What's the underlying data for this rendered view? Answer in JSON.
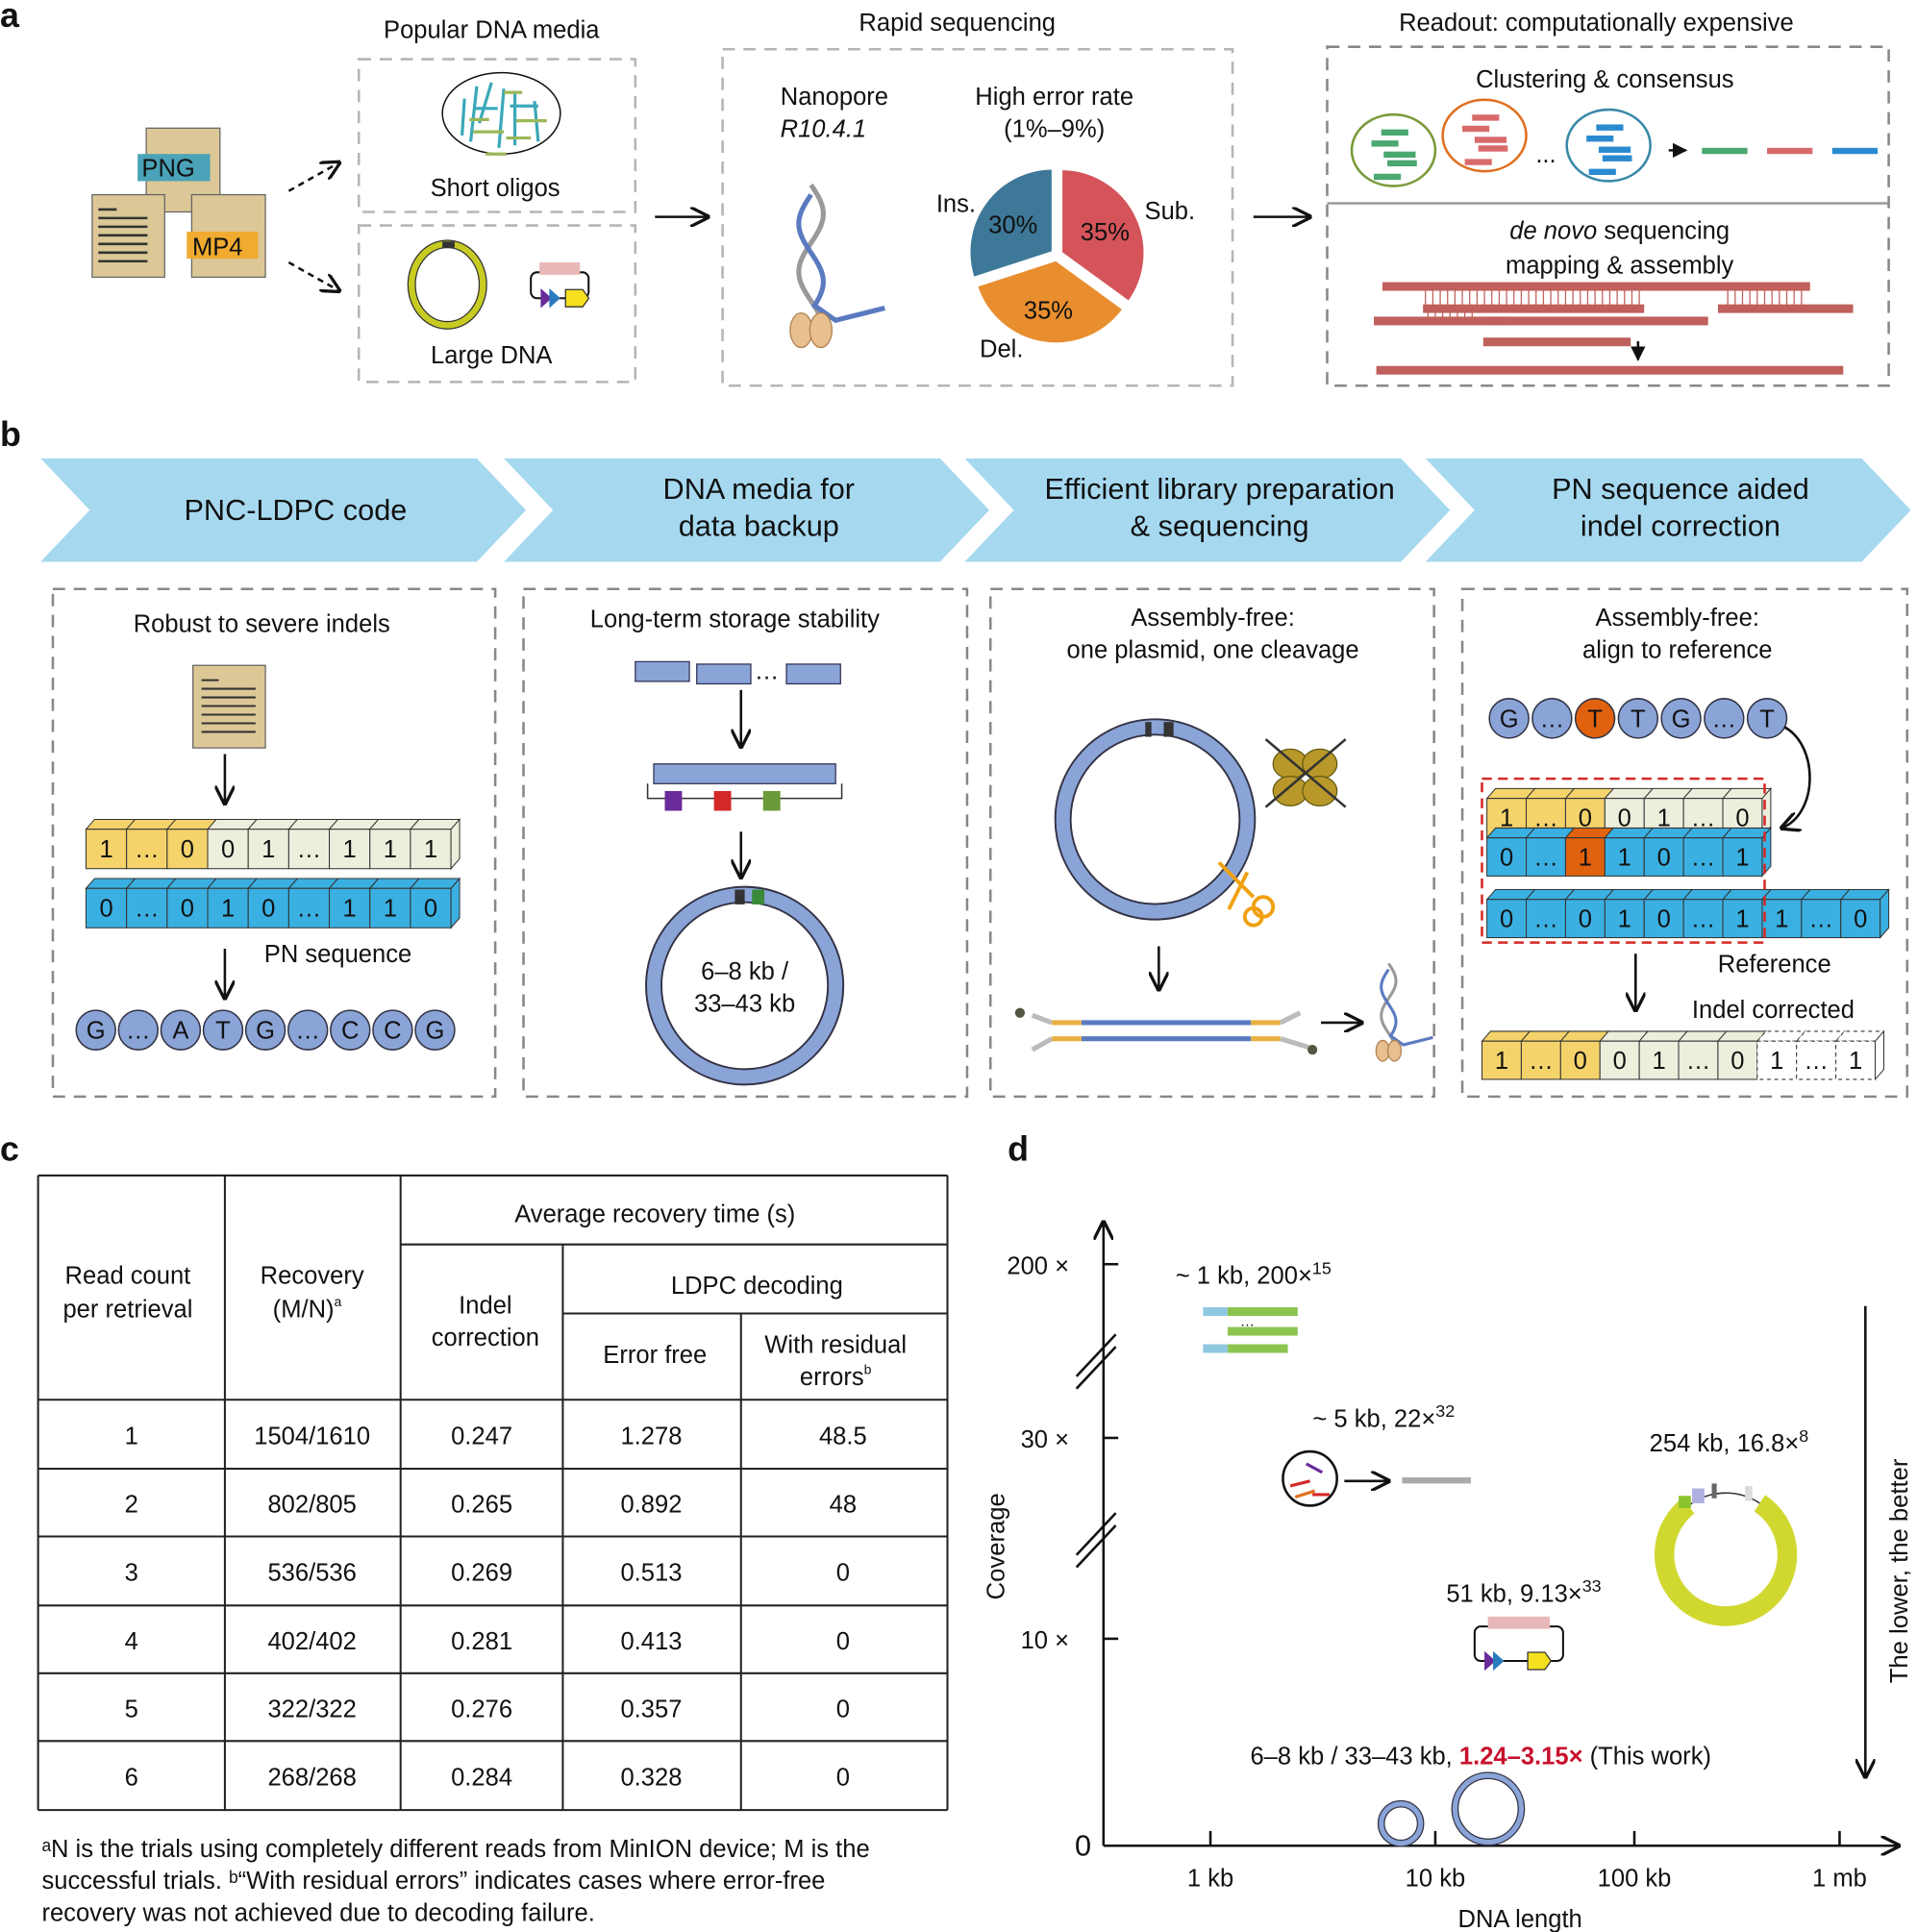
{
  "panel_labels": {
    "a": "a",
    "b": "b",
    "c": "c",
    "d": "d"
  },
  "a": {
    "png_label": "PNG",
    "mp4_label": "MP4",
    "media_title": "Popular DNA media",
    "short_oligos": "Short oligos",
    "large_dna": "Large DNA",
    "seq_title": "Rapid sequencing",
    "nanopore": "Nanopore",
    "model": "R10.4.1",
    "error_title": "High error rate",
    "error_range": "(1%–9%)",
    "pie": [
      {
        "label": "Sub.",
        "pct": "35%",
        "value": 35,
        "color": "#d4545a"
      },
      {
        "label": "Del.",
        "pct": "35%",
        "value": 35,
        "color": "#e88e2e"
      },
      {
        "label": "Ins.",
        "pct": "30%",
        "value": 30,
        "color": "#3e7898"
      }
    ],
    "readout_title": "Readout: computationally expensive",
    "clustering": "Clustering & consensus",
    "ellipsis": "...",
    "denovo_italic": "de novo",
    "denovo_rest": " sequencing",
    "mapping": "mapping & assembly"
  },
  "b": {
    "steps": [
      {
        "line1": "PNC-LDPC code",
        "line2": ""
      },
      {
        "line1": "DNA media for",
        "line2": "data backup"
      },
      {
        "line1": "Efficient library preparation",
        "line2": "& sequencing"
      },
      {
        "line1": "PN sequence aided",
        "line2": "indel correction"
      }
    ],
    "box1": {
      "title": "Robust to severe indels",
      "data_row": [
        "1",
        "…",
        "0",
        "0",
        "1",
        "…",
        "1",
        "1",
        "1"
      ],
      "pn_row": [
        "0",
        "…",
        "0",
        "1",
        "0",
        "…",
        "1",
        "1",
        "0"
      ],
      "pn_label": "PN sequence",
      "bases": [
        "G",
        "…",
        "A",
        "T",
        "G",
        "…",
        "C",
        "C",
        "G"
      ]
    },
    "box2": {
      "title": "Long-term storage stability",
      "ellipsis": "…",
      "size_line1": "6–8 kb /",
      "size_line2": "33–43 kb"
    },
    "box3": {
      "title_line1": "Assembly-free:",
      "title_line2": "one plasmid, one cleavage"
    },
    "box4": {
      "title_line1": "Assembly-free:",
      "title_line2": "align to reference",
      "bases": [
        "G",
        "…",
        "T",
        "T",
        "G",
        "…",
        "T"
      ],
      "row_data": [
        "1",
        "…",
        "0",
        "0",
        "1",
        "…",
        "0"
      ],
      "row_pn": [
        "0",
        "…",
        "1",
        "1",
        "0",
        "…",
        "1"
      ],
      "reference_row": [
        "0",
        "…",
        "0",
        "1",
        "0",
        "…",
        "1",
        "1",
        "…",
        "0"
      ],
      "reference_label": "Reference",
      "corrected_label": "Indel corrected",
      "corrected_row": [
        "1",
        "…",
        "0",
        "0",
        "1",
        "…",
        "0",
        "1",
        "…",
        "1"
      ]
    },
    "colors": {
      "chevron": "#a6d9f0",
      "yellow": "#f5d36b",
      "beige": "#eeeedd",
      "blue": "#3ab0e2",
      "orange": "#e0620e",
      "base": "#8aa4d8"
    }
  },
  "c": {
    "headers": {
      "read_count": [
        "Read count",
        "per retrieval"
      ],
      "recovery": [
        "Recovery",
        "(M/N)"
      ],
      "recovery_sup": "a",
      "avg_time": "Average recovery time (s)",
      "indel": [
        "Indel",
        "correction"
      ],
      "ldpc": "LDPC decoding",
      "error_free": "Error free",
      "residual": [
        "With residual",
        "errors"
      ],
      "residual_sup": "b"
    },
    "rows": [
      [
        "1",
        "1504/1610",
        "0.247",
        "1.278",
        "48.5"
      ],
      [
        "2",
        "802/805",
        "0.265",
        "0.892",
        "48"
      ],
      [
        "3",
        "536/536",
        "0.269",
        "0.513",
        "0"
      ],
      [
        "4",
        "402/402",
        "0.281",
        "0.413",
        "0"
      ],
      [
        "5",
        "322/322",
        "0.276",
        "0.357",
        "0"
      ],
      [
        "6",
        "268/268",
        "0.284",
        "0.328",
        "0"
      ]
    ],
    "footnotes": [
      "ᵃN is the trials using completely different reads from MinION device; M is the",
      "successful trials. ᵇ“With residual errors” indicates cases where error-free",
      "recovery was not achieved due to decoding failure."
    ]
  },
  "chart_data": {
    "type": "scatter",
    "xlabel": "DNA length",
    "ylabel": "Coverage",
    "x_scale": "log",
    "x_ticks": [
      "1 kb",
      "10 kb",
      "100 kb",
      "1 mb"
    ],
    "y_ticks": [
      "0",
      "10 ×",
      "30 ×",
      "200 ×"
    ],
    "y_axis_breaks": true,
    "annotation": "The lower, the better",
    "points": [
      {
        "label": "~ 1 kb, 200×",
        "ref": "15",
        "length_kb": 1,
        "coverage": 200
      },
      {
        "label": "~ 5 kb, 22×",
        "ref": "32",
        "length_kb": 5,
        "coverage": 22
      },
      {
        "label": "254 kb, 16.8×",
        "ref": "8",
        "length_kb": 254,
        "coverage": 16.8
      },
      {
        "label": "51 kb, 9.13×",
        "ref": "33",
        "length_kb": 51,
        "coverage": 9.13
      },
      {
        "label_prefix": "6–8 kb / 33–43 kb, ",
        "label_highlight": "1.24–3.15×",
        "label_suffix": " (This work)",
        "length_kb": [
          6,
          43
        ],
        "coverage": [
          1.24,
          3.15
        ]
      }
    ],
    "highlight_color": "#c8102e"
  }
}
